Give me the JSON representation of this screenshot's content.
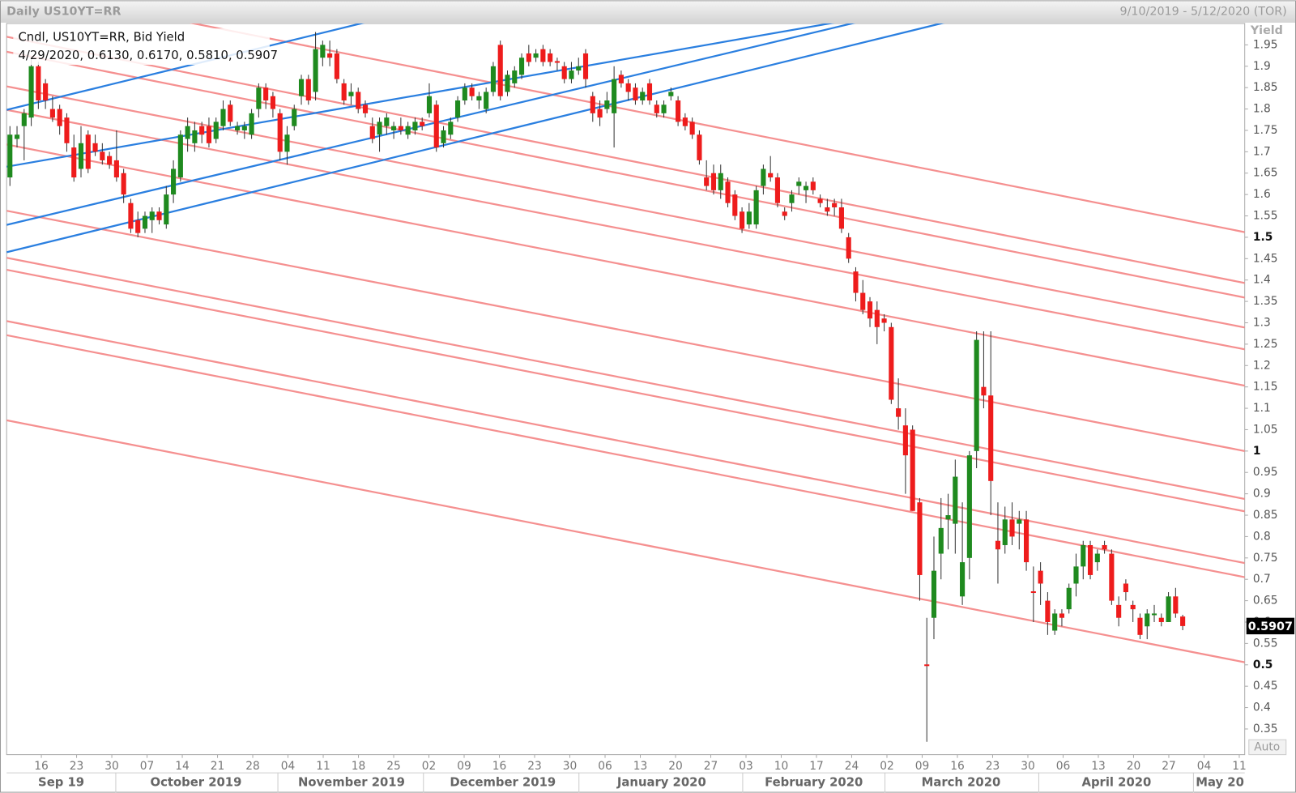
{
  "chart_data": {
    "type": "candlestick",
    "title": "Daily US10YT=RR",
    "date_range": "9/10/2019 - 5/12/2020 (TOR)",
    "legend_title": "Cndl, US10YT=RR, Bid Yield",
    "legend_values": "4/29/2020, 0.6130, 0.6170, 0.5810, 0.5907",
    "y_axis_label": "Yield",
    "scale_mode": "Auto",
    "last_price": 0.5907,
    "up_color": "#1f8a1f",
    "down_color": "#ee1c1c",
    "ylim": [
      0.29,
      2.0
    ],
    "yticks": [
      0.35,
      0.4,
      0.45,
      0.5,
      0.55,
      0.6,
      0.65,
      0.7,
      0.75,
      0.8,
      0.85,
      0.9,
      0.95,
      1,
      1.05,
      1.1,
      1.15,
      1.2,
      1.25,
      1.3,
      1.35,
      1.4,
      1.45,
      1.5,
      1.55,
      1.6,
      1.65,
      1.7,
      1.75,
      1.8,
      1.85,
      1.9,
      1.95
    ],
    "x_day_labels": [
      "16",
      "23",
      "30",
      "07",
      "14",
      "21",
      "28",
      "04",
      "11",
      "18",
      "25",
      "02",
      "09",
      "16",
      "23",
      "30",
      "06",
      "13",
      "20",
      "27",
      "03",
      "10",
      "17",
      "24",
      "02",
      "09",
      "16",
      "23",
      "30",
      "06",
      "13",
      "20",
      "27",
      "04",
      "11"
    ],
    "x_month_labels": [
      "Sep 19",
      "October 2019",
      "November 2019",
      "December 2019",
      "January 2020",
      "February 2020",
      "March 2020",
      "April 2020",
      "May 20"
    ],
    "trendlines": [
      {
        "color": "#f59090",
        "start": 2.087,
        "end": 1.512
      },
      {
        "color": "#f59090",
        "start": 1.969,
        "end": 1.393
      },
      {
        "color": "#f59090",
        "start": 1.934,
        "end": 1.359
      },
      {
        "color": "#f59090",
        "start": 1.853,
        "end": 1.289
      },
      {
        "color": "#f59090",
        "start": 1.798,
        "end": 1.238
      },
      {
        "color": "#f59090",
        "start": 1.717,
        "end": 1.153
      },
      {
        "color": "#f59090",
        "start": 1.562,
        "end": 1.0
      },
      {
        "color": "#f59090",
        "start": 1.452,
        "end": 0.888
      },
      {
        "color": "#f59090",
        "start": 1.424,
        "end": 0.859
      },
      {
        "color": "#f59090",
        "start": 1.304,
        "end": 0.738
      },
      {
        "color": "#f59090",
        "start": 1.271,
        "end": 0.705
      },
      {
        "color": "#f59090",
        "start": 1.072,
        "end": 0.506
      },
      {
        "color": "#2a7fe0",
        "start": 1.798,
        "end": 2.504
      },
      {
        "color": "#2a7fe0",
        "start": 1.665,
        "end": 2.169
      },
      {
        "color": "#2a7fe0",
        "start": 1.529,
        "end": 2.219
      },
      {
        "color": "#2a7fe0",
        "start": 1.465,
        "end": 2.174
      }
    ],
    "ohlc": [
      [
        1.64,
        1.76,
        1.62,
        1.74
      ],
      [
        1.73,
        1.76,
        1.71,
        1.74
      ],
      [
        1.76,
        1.8,
        1.68,
        1.79
      ],
      [
        1.78,
        1.92,
        1.76,
        1.9
      ],
      [
        1.9,
        1.91,
        1.8,
        1.82
      ],
      [
        1.86,
        1.87,
        1.8,
        1.82
      ],
      [
        1.8,
        1.83,
        1.77,
        1.78
      ],
      [
        1.8,
        1.81,
        1.74,
        1.76
      ],
      [
        1.78,
        1.79,
        1.7,
        1.72
      ],
      [
        1.71,
        1.74,
        1.63,
        1.64
      ],
      [
        1.66,
        1.76,
        1.64,
        1.72
      ],
      [
        1.74,
        1.75,
        1.65,
        1.66
      ],
      [
        1.72,
        1.74,
        1.69,
        1.7
      ],
      [
        1.7,
        1.72,
        1.67,
        1.68
      ],
      [
        1.69,
        1.7,
        1.66,
        1.67
      ],
      [
        1.68,
        1.75,
        1.63,
        1.64
      ],
      [
        1.65,
        1.66,
        1.58,
        1.6
      ],
      [
        1.58,
        1.59,
        1.51,
        1.52
      ],
      [
        1.54,
        1.56,
        1.5,
        1.51
      ],
      [
        1.52,
        1.56,
        1.51,
        1.55
      ],
      [
        1.54,
        1.57,
        1.51,
        1.56
      ],
      [
        1.56,
        1.57,
        1.53,
        1.54
      ],
      [
        1.53,
        1.62,
        1.52,
        1.6
      ],
      [
        1.6,
        1.68,
        1.58,
        1.66
      ],
      [
        1.64,
        1.75,
        1.63,
        1.74
      ],
      [
        1.73,
        1.78,
        1.7,
        1.76
      ],
      [
        1.72,
        1.77,
        1.7,
        1.75
      ],
      [
        1.76,
        1.77,
        1.72,
        1.74
      ],
      [
        1.76,
        1.78,
        1.71,
        1.72
      ],
      [
        1.73,
        1.78,
        1.72,
        1.77
      ],
      [
        1.76,
        1.82,
        1.75,
        1.8
      ],
      [
        1.81,
        1.82,
        1.76,
        1.77
      ],
      [
        1.75,
        1.77,
        1.74,
        1.76
      ],
      [
        1.75,
        1.77,
        1.73,
        1.76
      ],
      [
        1.74,
        1.8,
        1.73,
        1.79
      ],
      [
        1.8,
        1.86,
        1.78,
        1.85
      ],
      [
        1.85,
        1.86,
        1.8,
        1.82
      ],
      [
        1.83,
        1.84,
        1.78,
        1.8
      ],
      [
        1.79,
        1.8,
        1.68,
        1.7
      ],
      [
        1.7,
        1.76,
        1.67,
        1.74
      ],
      [
        1.76,
        1.81,
        1.75,
        1.8
      ],
      [
        1.83,
        1.88,
        1.81,
        1.87
      ],
      [
        1.87,
        1.88,
        1.81,
        1.82
      ],
      [
        1.84,
        1.98,
        1.82,
        1.94
      ],
      [
        1.92,
        1.96,
        1.9,
        1.95
      ],
      [
        1.93,
        1.96,
        1.9,
        1.92
      ],
      [
        1.93,
        1.94,
        1.86,
        1.87
      ],
      [
        1.86,
        1.87,
        1.81,
        1.82
      ],
      [
        1.83,
        1.86,
        1.81,
        1.84
      ],
      [
        1.84,
        1.85,
        1.79,
        1.8
      ],
      [
        1.81,
        1.82,
        1.78,
        1.79
      ],
      [
        1.76,
        1.78,
        1.72,
        1.73
      ],
      [
        1.74,
        1.78,
        1.7,
        1.77
      ],
      [
        1.76,
        1.79,
        1.74,
        1.78
      ],
      [
        1.75,
        1.77,
        1.73,
        1.76
      ],
      [
        1.76,
        1.78,
        1.74,
        1.75
      ],
      [
        1.74,
        1.77,
        1.73,
        1.76
      ],
      [
        1.75,
        1.78,
        1.74,
        1.77
      ],
      [
        1.77,
        1.78,
        1.75,
        1.76
      ],
      [
        1.79,
        1.86,
        1.78,
        1.83
      ],
      [
        1.81,
        1.82,
        1.7,
        1.71
      ],
      [
        1.72,
        1.76,
        1.71,
        1.75
      ],
      [
        1.74,
        1.78,
        1.73,
        1.77
      ],
      [
        1.78,
        1.83,
        1.77,
        1.82
      ],
      [
        1.82,
        1.86,
        1.81,
        1.85
      ],
      [
        1.85,
        1.86,
        1.82,
        1.83
      ],
      [
        1.82,
        1.84,
        1.8,
        1.83
      ],
      [
        1.8,
        1.85,
        1.79,
        1.84
      ],
      [
        1.84,
        1.91,
        1.83,
        1.9
      ],
      [
        1.95,
        1.96,
        1.82,
        1.83
      ],
      [
        1.84,
        1.89,
        1.83,
        1.88
      ],
      [
        1.86,
        1.9,
        1.85,
        1.89
      ],
      [
        1.88,
        1.93,
        1.87,
        1.92
      ],
      [
        1.93,
        1.95,
        1.9,
        1.91
      ],
      [
        1.92,
        1.94,
        1.91,
        1.93
      ],
      [
        1.94,
        1.95,
        1.9,
        1.91
      ],
      [
        1.93,
        1.94,
        1.9,
        1.91
      ],
      [
        1.912,
        1.92,
        1.89,
        1.91
      ],
      [
        1.9,
        1.91,
        1.86,
        1.87
      ],
      [
        1.87,
        1.91,
        1.86,
        1.89
      ],
      [
        1.89,
        1.92,
        1.88,
        1.9
      ],
      [
        1.93,
        1.94,
        1.85,
        1.87
      ],
      [
        1.83,
        1.84,
        1.77,
        1.79
      ],
      [
        1.8,
        1.82,
        1.76,
        1.78
      ],
      [
        1.8,
        1.84,
        1.79,
        1.82
      ],
      [
        1.79,
        1.9,
        1.71,
        1.87
      ],
      [
        1.88,
        1.89,
        1.85,
        1.86
      ],
      [
        1.86,
        1.87,
        1.82,
        1.84
      ],
      [
        1.85,
        1.86,
        1.81,
        1.82
      ],
      [
        1.82,
        1.85,
        1.81,
        1.84
      ],
      [
        1.86,
        1.87,
        1.81,
        1.82
      ],
      [
        1.81,
        1.82,
        1.78,
        1.79
      ],
      [
        1.79,
        1.82,
        1.78,
        1.81
      ],
      [
        1.83,
        1.85,
        1.82,
        1.84
      ],
      [
        1.82,
        1.83,
        1.76,
        1.77
      ],
      [
        1.78,
        1.79,
        1.75,
        1.76
      ],
      [
        1.77,
        1.78,
        1.73,
        1.74
      ],
      [
        1.74,
        1.75,
        1.67,
        1.68
      ],
      [
        1.64,
        1.68,
        1.61,
        1.62
      ],
      [
        1.65,
        1.67,
        1.6,
        1.61
      ],
      [
        1.61,
        1.67,
        1.59,
        1.65
      ],
      [
        1.63,
        1.64,
        1.57,
        1.58
      ],
      [
        1.6,
        1.61,
        1.54,
        1.55
      ],
      [
        1.56,
        1.57,
        1.51,
        1.52
      ],
      [
        1.53,
        1.58,
        1.52,
        1.56
      ],
      [
        1.53,
        1.62,
        1.52,
        1.61
      ],
      [
        1.62,
        1.67,
        1.6,
        1.66
      ],
      [
        1.65,
        1.69,
        1.63,
        1.64
      ],
      [
        1.64,
        1.65,
        1.57,
        1.58
      ],
      [
        1.56,
        1.57,
        1.54,
        1.55
      ],
      [
        1.58,
        1.61,
        1.56,
        1.6
      ],
      [
        1.62,
        1.64,
        1.6,
        1.63
      ],
      [
        1.61,
        1.63,
        1.58,
        1.62
      ],
      [
        1.63,
        1.64,
        1.6,
        1.61
      ],
      [
        1.59,
        1.6,
        1.57,
        1.58
      ],
      [
        1.57,
        1.59,
        1.55,
        1.56
      ],
      [
        1.58,
        1.59,
        1.55,
        1.57
      ],
      [
        1.57,
        1.59,
        1.51,
        1.52
      ],
      [
        1.5,
        1.51,
        1.44,
        1.45
      ],
      [
        1.42,
        1.43,
        1.35,
        1.37
      ],
      [
        1.37,
        1.4,
        1.32,
        1.33
      ],
      [
        1.35,
        1.36,
        1.29,
        1.31
      ],
      [
        1.33,
        1.35,
        1.25,
        1.29
      ],
      [
        1.31,
        1.32,
        1.28,
        1.3
      ],
      [
        1.29,
        1.3,
        1.11,
        1.12
      ],
      [
        1.1,
        1.17,
        1.05,
        1.08
      ],
      [
        1.06,
        1.1,
        0.9,
        0.99
      ],
      [
        1.05,
        1.06,
        0.86,
        0.86
      ],
      [
        0.88,
        0.89,
        0.65,
        0.71
      ],
      [
        0.501,
        0.61,
        0.32,
        0.5
      ],
      [
        0.61,
        0.8,
        0.56,
        0.72
      ],
      [
        0.76,
        0.89,
        0.7,
        0.82
      ],
      [
        0.84,
        0.9,
        0.77,
        0.85
      ],
      [
        0.83,
        0.98,
        0.76,
        0.94
      ],
      [
        0.66,
        0.88,
        0.64,
        0.74
      ],
      [
        0.75,
        1.0,
        0.7,
        0.99
      ],
      [
        1.0,
        1.28,
        0.96,
        1.26
      ],
      [
        1.15,
        1.28,
        1.1,
        1.13
      ],
      [
        1.13,
        1.28,
        0.85,
        0.93
      ],
      [
        0.79,
        0.88,
        0.69,
        0.77
      ],
      [
        0.78,
        0.87,
        0.76,
        0.84
      ],
      [
        0.84,
        0.88,
        0.78,
        0.8
      ],
      [
        0.83,
        0.86,
        0.77,
        0.84
      ],
      [
        0.84,
        0.86,
        0.72,
        0.74
      ],
      [
        0.672,
        0.73,
        0.6,
        0.67
      ],
      [
        0.72,
        0.74,
        0.64,
        0.69
      ],
      [
        0.65,
        0.67,
        0.57,
        0.6
      ],
      [
        0.58,
        0.63,
        0.57,
        0.62
      ],
      [
        0.62,
        0.63,
        0.59,
        0.61
      ],
      [
        0.63,
        0.69,
        0.62,
        0.68
      ],
      [
        0.69,
        0.76,
        0.66,
        0.73
      ],
      [
        0.73,
        0.79,
        0.7,
        0.78
      ],
      [
        0.78,
        0.79,
        0.7,
        0.71
      ],
      [
        0.74,
        0.77,
        0.72,
        0.76
      ],
      [
        0.78,
        0.79,
        0.76,
        0.77
      ],
      [
        0.76,
        0.77,
        0.64,
        0.65
      ],
      [
        0.64,
        0.66,
        0.59,
        0.61
      ],
      [
        0.69,
        0.7,
        0.65,
        0.67
      ],
      [
        0.64,
        0.65,
        0.6,
        0.63
      ],
      [
        0.61,
        0.62,
        0.56,
        0.57
      ],
      [
        0.59,
        0.63,
        0.56,
        0.62
      ],
      [
        0.618,
        0.64,
        0.6,
        0.62
      ],
      [
        0.61,
        0.62,
        0.59,
        0.6
      ],
      [
        0.6,
        0.67,
        0.6,
        0.66
      ],
      [
        0.66,
        0.68,
        0.61,
        0.62
      ],
      [
        0.613,
        0.617,
        0.581,
        0.5907
      ]
    ]
  }
}
